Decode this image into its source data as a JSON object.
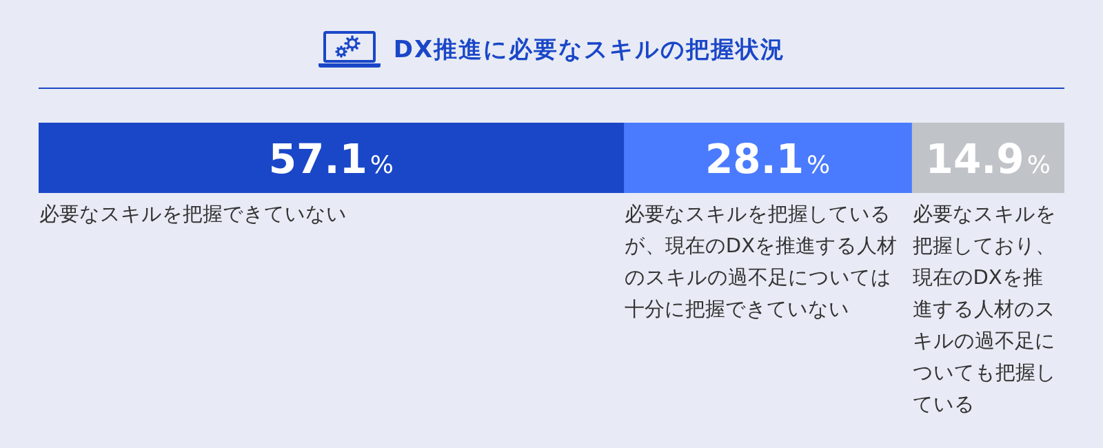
{
  "chart_data": {
    "type": "bar",
    "orientation": "horizontal",
    "stacked": true,
    "title": "DX推進に必要なスキルの把握状況",
    "categories": [
      null
    ],
    "series": [
      {
        "name": "必要なスキルを把握できていない",
        "color": "#1a47c8",
        "values": [
          57.1
        ],
        "value_labels": [
          "57.1%"
        ]
      },
      {
        "name": "必要なスキルを把握しているが、現在のDXを推進する人材のスキルの過不足については十分に把握できていない",
        "color": "#4a7bff",
        "values": [
          28.1
        ],
        "value_labels": [
          "28.1%"
        ]
      },
      {
        "name": "必要なスキルを把握しており、現在のDXを推進する人材のスキルの過不足についても把握している",
        "color": "#c0c3c8",
        "values": [
          14.9
        ],
        "value_labels": [
          "14.9%"
        ]
      }
    ],
    "xlim": [
      0,
      100.1
    ],
    "tick_labels": false
  }
}
